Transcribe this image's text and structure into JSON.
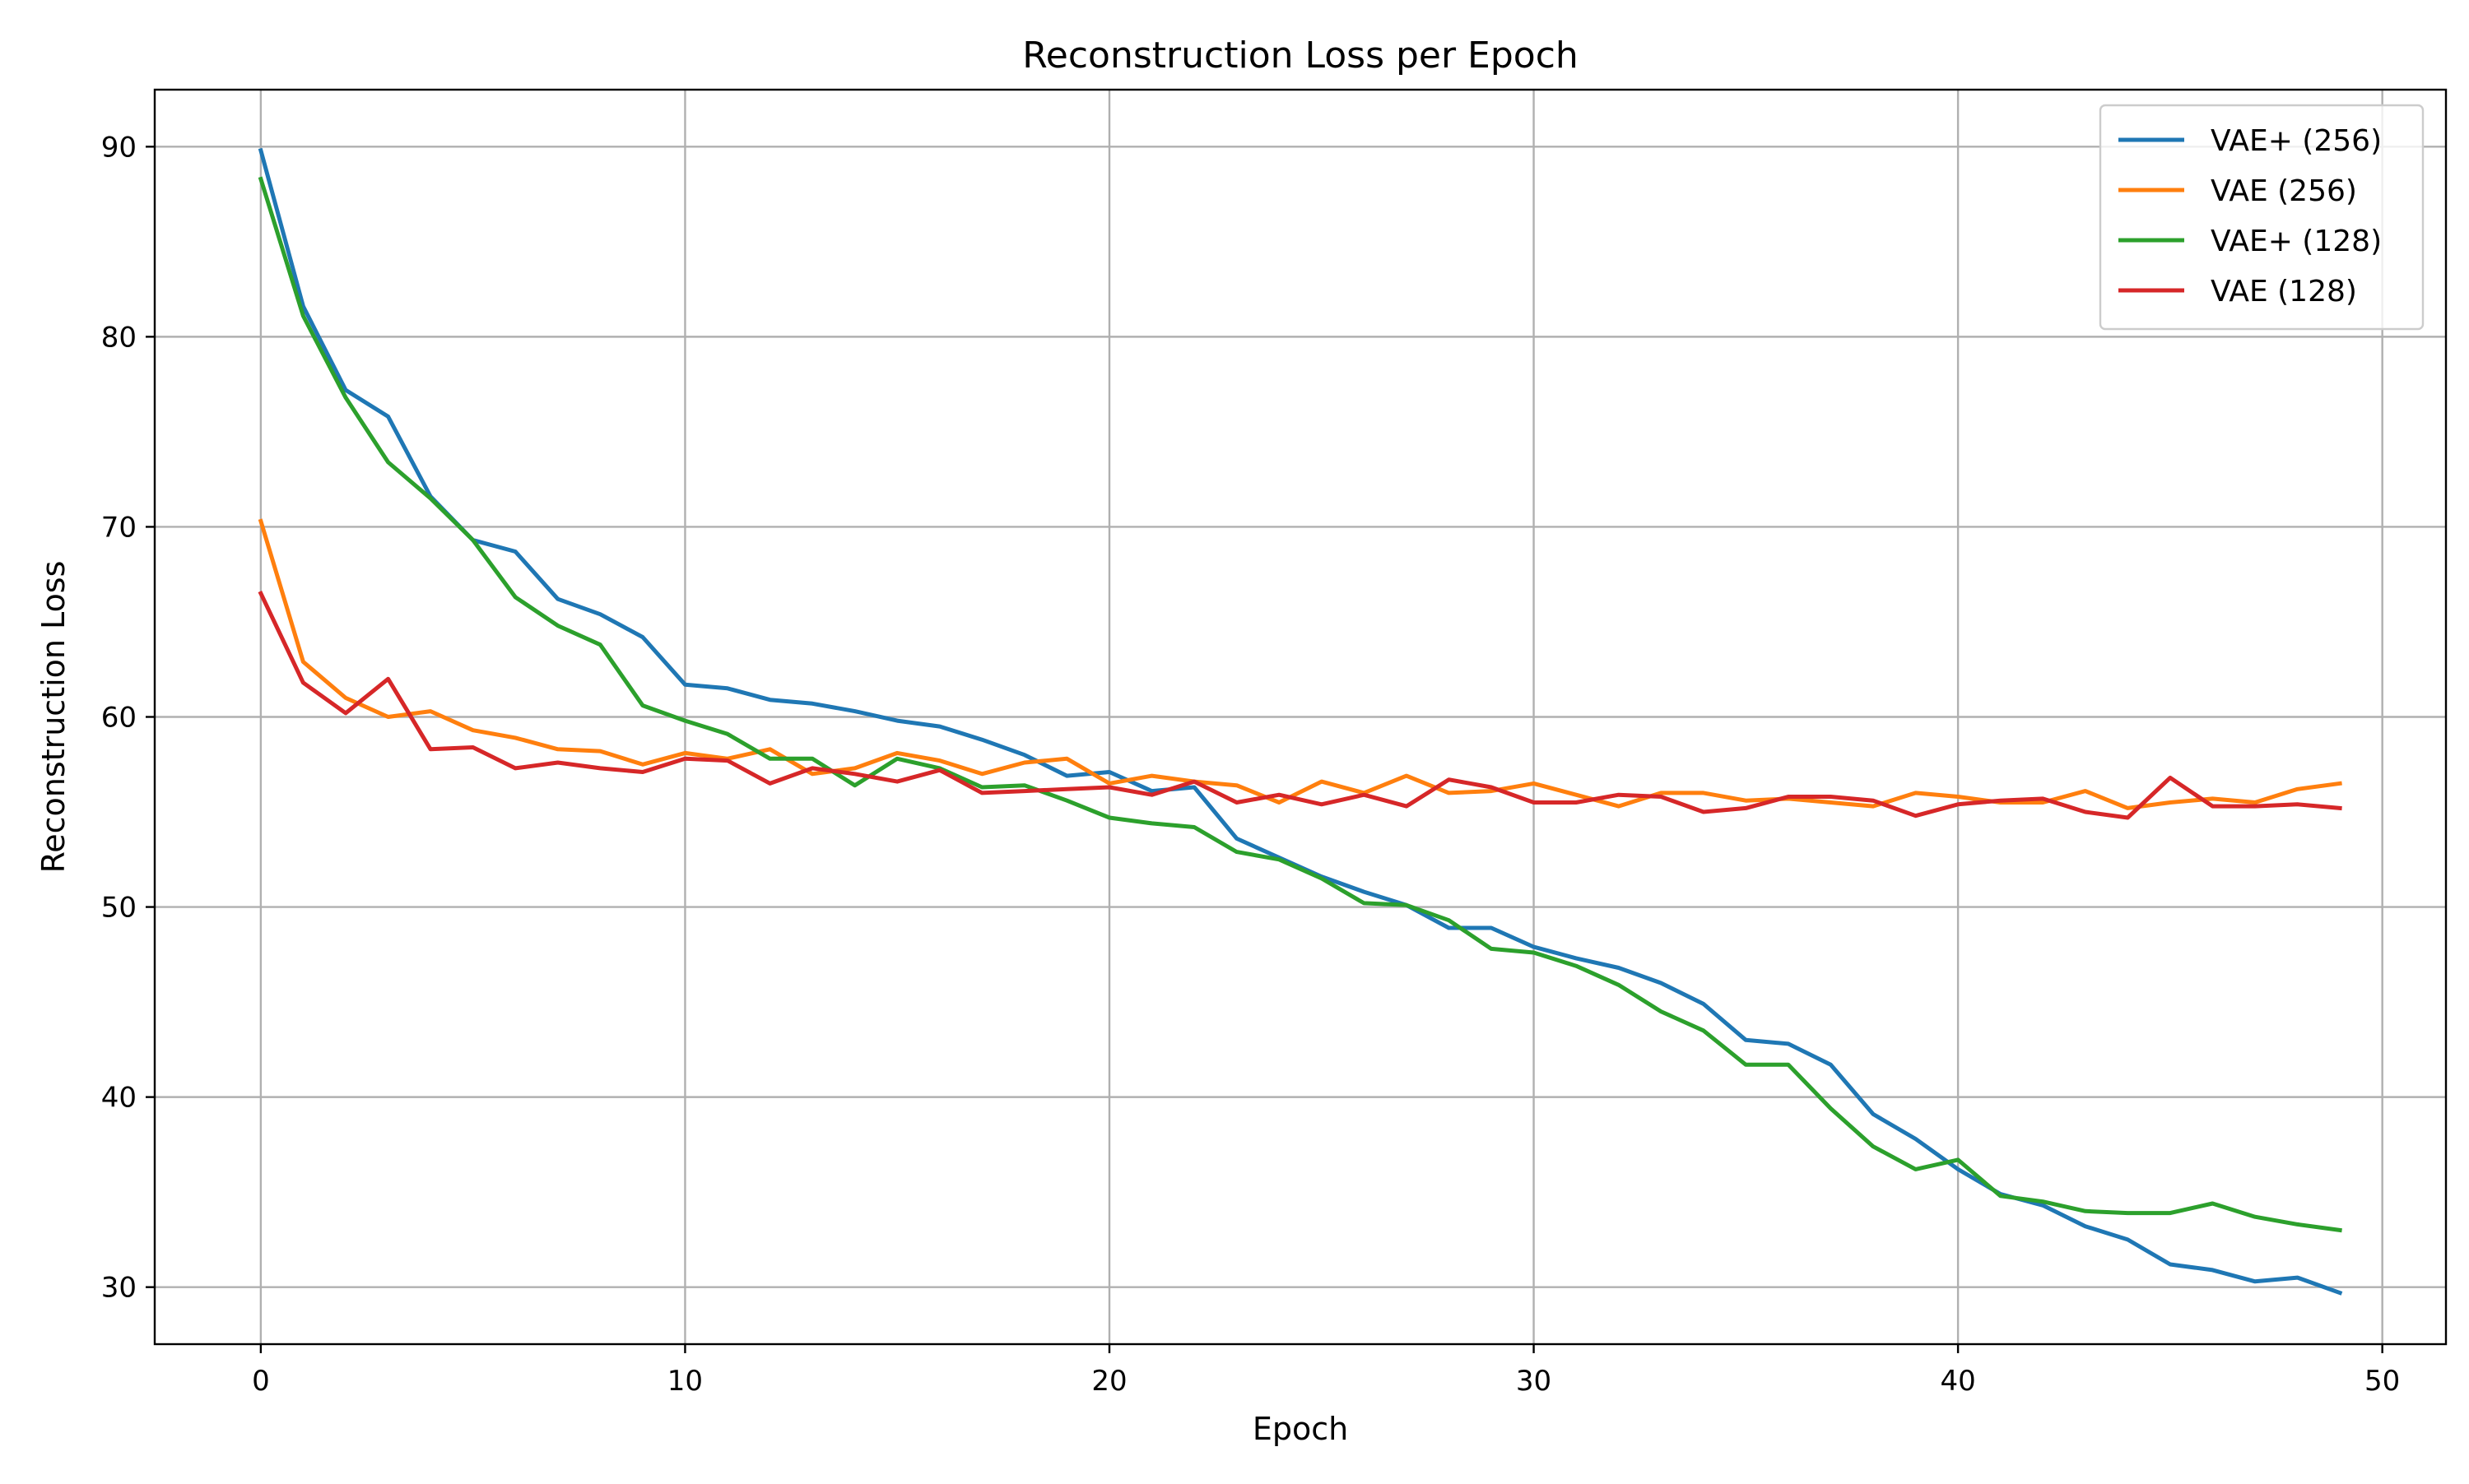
{
  "chart_data": {
    "type": "line",
    "title": "Reconstruction Loss per Epoch",
    "xlabel": "Epoch",
    "ylabel": "Reconstruction Loss",
    "xlim": [
      -2.5,
      51.5
    ],
    "ylim": [
      27,
      93
    ],
    "xticks": [
      0,
      10,
      20,
      30,
      40,
      50
    ],
    "yticks": [
      30,
      40,
      50,
      60,
      70,
      80,
      90
    ],
    "grid": true,
    "legend_position": "top-right",
    "x": [
      0,
      1,
      2,
      3,
      4,
      5,
      6,
      7,
      8,
      9,
      10,
      11,
      12,
      13,
      14,
      15,
      16,
      17,
      18,
      19,
      20,
      21,
      22,
      23,
      24,
      25,
      26,
      27,
      28,
      29,
      30,
      31,
      32,
      33,
      34,
      35,
      36,
      37,
      38,
      39,
      40,
      41,
      42,
      43,
      44,
      45,
      46,
      47,
      48,
      49
    ],
    "series": [
      {
        "name": "VAE+ (256)",
        "color": "#1f77b4",
        "values": [
          89.8,
          81.6,
          77.2,
          75.8,
          71.6,
          69.3,
          68.7,
          66.2,
          65.4,
          64.2,
          61.7,
          61.5,
          60.9,
          60.7,
          60.3,
          59.8,
          59.5,
          58.8,
          58.0,
          56.9,
          57.1,
          56.1,
          56.3,
          53.6,
          52.6,
          51.6,
          50.8,
          50.1,
          48.9,
          48.9,
          47.9,
          47.3,
          46.8,
          46.0,
          44.9,
          43.0,
          42.8,
          41.7,
          39.1,
          37.8,
          36.2,
          34.9,
          34.3,
          33.2,
          32.5,
          31.2,
          30.9,
          30.3,
          30.5,
          29.7
        ]
      },
      {
        "name": "VAE (256)",
        "color": "#ff7f0e",
        "values": [
          70.3,
          62.9,
          61.0,
          60.0,
          60.3,
          59.3,
          58.9,
          58.3,
          58.2,
          57.5,
          58.1,
          57.8,
          58.3,
          57.0,
          57.3,
          58.1,
          57.7,
          57.0,
          57.6,
          57.8,
          56.5,
          56.9,
          56.6,
          56.4,
          55.5,
          56.6,
          56.0,
          56.9,
          56.0,
          56.1,
          56.5,
          55.9,
          55.3,
          56.0,
          56.0,
          55.6,
          55.7,
          55.5,
          55.3,
          56.0,
          55.8,
          55.5,
          55.5,
          56.1,
          55.2,
          55.5,
          55.7,
          55.5,
          56.2,
          56.5
        ]
      },
      {
        "name": "VAE+ (128)",
        "color": "#2ca02c",
        "values": [
          88.3,
          81.1,
          76.8,
          73.4,
          71.5,
          69.3,
          66.3,
          64.8,
          63.8,
          60.6,
          59.8,
          59.1,
          57.8,
          57.8,
          56.4,
          57.8,
          57.3,
          56.3,
          56.4,
          55.6,
          54.7,
          54.4,
          54.2,
          52.9,
          52.5,
          51.5,
          50.2,
          50.1,
          49.3,
          47.8,
          47.6,
          46.9,
          45.9,
          44.5,
          43.5,
          41.7,
          41.7,
          39.4,
          37.4,
          36.2,
          36.7,
          34.8,
          34.5,
          34.0,
          33.9,
          33.9,
          34.4,
          33.7,
          33.3,
          33.0
        ]
      },
      {
        "name": "VAE (128)",
        "color": "#d62728",
        "values": [
          66.5,
          61.8,
          60.2,
          62.0,
          58.3,
          58.4,
          57.3,
          57.6,
          57.3,
          57.1,
          57.8,
          57.7,
          56.5,
          57.3,
          57.0,
          56.6,
          57.2,
          56.0,
          56.1,
          56.2,
          56.3,
          55.9,
          56.6,
          55.5,
          55.9,
          55.4,
          55.9,
          55.3,
          56.7,
          56.3,
          55.5,
          55.5,
          55.9,
          55.8,
          55.0,
          55.2,
          55.8,
          55.8,
          55.6,
          54.8,
          55.4,
          55.6,
          55.7,
          55.0,
          54.7,
          56.8,
          55.3,
          55.3,
          55.4,
          55.2
        ]
      }
    ]
  }
}
